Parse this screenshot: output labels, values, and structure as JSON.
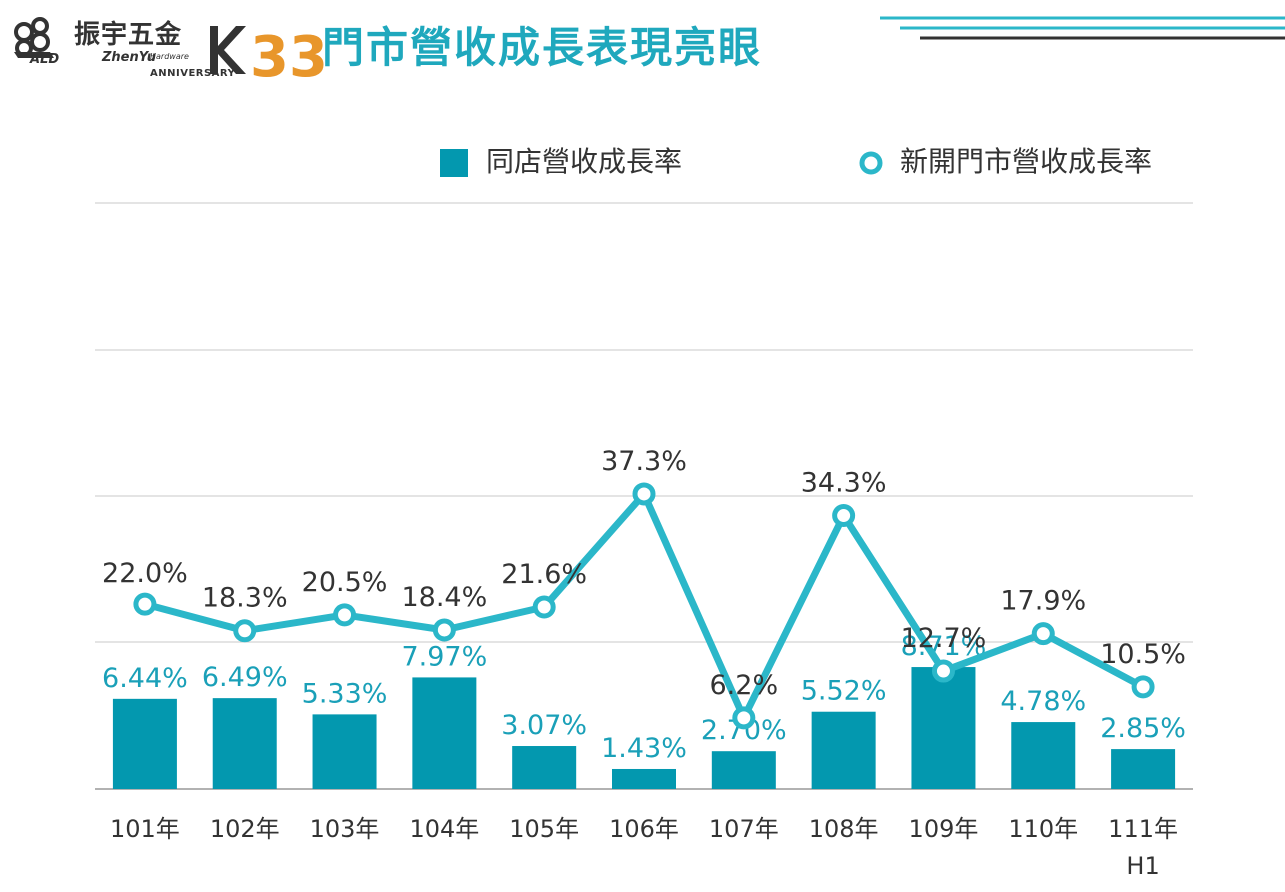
{
  "header": {
    "logo": {
      "company_cn": "振宇五金",
      "company_en": "ZhenYu",
      "company_en_sub": "Hardware",
      "anniversary_label": "ANNIVERSARY",
      "ald_mark": "ALD",
      "anniversary_number": "33"
    },
    "title": "門市營收成長表現亮眼"
  },
  "colors": {
    "bar": "#0398af",
    "line": "#2bb7c9",
    "title": "#1fa8bd",
    "bar_label": "#1aa0b8",
    "line_label": "#333333",
    "grid": "#c8c8c8",
    "deco_teal": "#2bb7c9",
    "deco_dark": "#333333"
  },
  "chart_data": {
    "type": "bar",
    "categories": [
      "101年",
      "102年",
      "103年",
      "104年",
      "105年",
      "106年",
      "107年",
      "108年",
      "109年",
      "110年",
      "111年"
    ],
    "category_sublabels": [
      "",
      "",
      "",
      "",
      "",
      "",
      "",
      "",
      "",
      "",
      "H1"
    ],
    "series": [
      {
        "name": "同店營收成長率",
        "type": "bar",
        "values": [
          6.44,
          6.49,
          5.33,
          7.97,
          3.07,
          1.43,
          2.7,
          5.52,
          8.71,
          4.78,
          2.85
        ],
        "labels": [
          "6.44%",
          "6.49%",
          "5.33%",
          "7.97%",
          "3.07%",
          "1.43%",
          "2.70%",
          "5.52%",
          "8.71%",
          "4.78%",
          "2.85%"
        ]
      },
      {
        "name": "新開門市營收成長率",
        "type": "line",
        "values": [
          22.0,
          18.3,
          20.5,
          18.4,
          21.6,
          37.3,
          6.2,
          34.3,
          12.7,
          17.9,
          10.5
        ],
        "labels": [
          "22.0%",
          "18.3%",
          "20.5%",
          "18.4%",
          "21.6%",
          "37.3%",
          "6.2%",
          "34.3%",
          "12.7%",
          "17.9%",
          "10.5%"
        ]
      }
    ],
    "grid": true,
    "legend_position": "top-right"
  }
}
